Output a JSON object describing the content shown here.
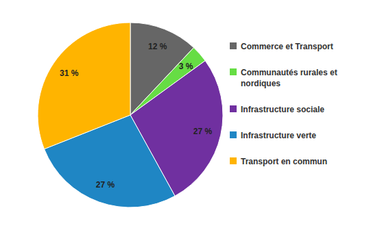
{
  "chart_data": {
    "type": "pie",
    "categories": [
      "Commerce et Transport",
      "Communautés rurales et nordiques",
      "Infrastructure sociale",
      "Infrastructure verte",
      "Transport en commun"
    ],
    "values": [
      12,
      3,
      27,
      27,
      31
    ],
    "value_labels": [
      "12 %",
      "3 %",
      "27 %",
      "27 %",
      "31 %"
    ],
    "colors": [
      "#666666",
      "#66dd44",
      "#7030a0",
      "#1f86c4",
      "#ffb400"
    ],
    "data_labels": true,
    "legend": "right"
  }
}
